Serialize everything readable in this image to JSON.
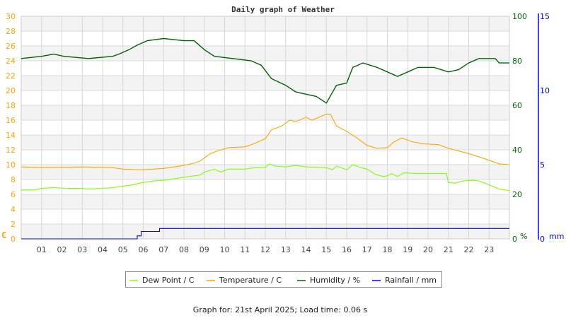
{
  "chart_data": {
    "type": "line",
    "title": "Daily graph of Weather",
    "footer": "Graph for: 21st April 2025; Load time: 0.06 s",
    "x_ticks": [
      "01",
      "02",
      "03",
      "04",
      "05",
      "06",
      "07",
      "08",
      "09",
      "10",
      "11",
      "12",
      "13",
      "14",
      "15",
      "16",
      "17",
      "18",
      "19",
      "20",
      "21",
      "22",
      "23"
    ],
    "xlim": [
      0,
      24
    ],
    "y_left": {
      "unit": "C",
      "lim": [
        0,
        30
      ],
      "ticks": [
        "0",
        "2",
        "4",
        "6",
        "8",
        "10",
        "12",
        "14",
        "16",
        "18",
        "20",
        "22",
        "24",
        "26",
        "28",
        "30"
      ],
      "color": "#ffa500"
    },
    "y_right1": {
      "unit": "%",
      "lim": [
        0,
        100
      ],
      "ticks": [
        "0",
        "20",
        "40",
        "60",
        "80",
        "100"
      ],
      "color": "#006400"
    },
    "y_right2": {
      "unit": "mm",
      "lim": [
        0,
        15
      ],
      "ticks": [
        "0",
        "5",
        "10",
        "15"
      ],
      "color": "#0000ff"
    },
    "grid": true,
    "legend_position": "bottom",
    "series": [
      {
        "name": "Dew Point / C",
        "axis": "left",
        "color": "#7fff00",
        "x": [
          0,
          0.7,
          1,
          1.6,
          2.2,
          3,
          3.3,
          4.5,
          5,
          5.5,
          6,
          6.5,
          7,
          7.5,
          8,
          8.8,
          9,
          9.5,
          9.8,
          10.2,
          11,
          11.5,
          12,
          12.2,
          12.5,
          13,
          13.5,
          14,
          15,
          15.3,
          15.5,
          16,
          16.3,
          16.7,
          17,
          17.4,
          17.8,
          18,
          18.2,
          18.5,
          18.8,
          19.5,
          20.5,
          20.9,
          21,
          21.3,
          21.7,
          22.2,
          22.5,
          23,
          23.5,
          24
        ],
        "y": [
          6.6,
          6.6,
          6.8,
          6.9,
          6.8,
          6.8,
          6.7,
          6.9,
          7.1,
          7.3,
          7.6,
          7.8,
          7.9,
          8.1,
          8.3,
          8.6,
          9.0,
          9.4,
          9.0,
          9.4,
          9.4,
          9.6,
          9.6,
          10.1,
          9.8,
          9.7,
          9.9,
          9.7,
          9.6,
          9.3,
          9.8,
          9.3,
          10.0,
          9.6,
          9.4,
          8.7,
          8.4,
          8.5,
          8.8,
          8.4,
          8.9,
          8.8,
          8.8,
          8.8,
          7.6,
          7.5,
          7.8,
          7.9,
          7.8,
          7.3,
          6.7,
          6.5
        ]
      },
      {
        "name": "Temperature / C",
        "axis": "left",
        "color": "#ffa500",
        "x": [
          0,
          1,
          3,
          4.5,
          5,
          5.8,
          6.5,
          7,
          7.8,
          8.5,
          8.8,
          9.3,
          9.7,
          10.2,
          11,
          11.5,
          12,
          12.3,
          12.8,
          13.2,
          13.5,
          14,
          14.3,
          15,
          15.2,
          15.5,
          16,
          16.5,
          17,
          17.5,
          18,
          18.3,
          18.7,
          19.2,
          19.8,
          20.5,
          21,
          22,
          23,
          23.5,
          24
        ],
        "y": [
          9.7,
          9.6,
          9.7,
          9.6,
          9.4,
          9.3,
          9.4,
          9.5,
          9.8,
          10.2,
          10.5,
          11.5,
          11.9,
          12.3,
          12.4,
          12.9,
          13.5,
          14.7,
          15.2,
          16.0,
          15.8,
          16.4,
          16.0,
          16.8,
          16.8,
          15.2,
          14.5,
          13.6,
          12.6,
          12.2,
          12.3,
          13.0,
          13.6,
          13.1,
          12.8,
          12.7,
          12.2,
          11.5,
          10.6,
          10.1,
          10.0
        ]
      },
      {
        "name": "Humidity / %",
        "axis": "right1",
        "color": "#006400",
        "x": [
          0,
          1,
          1.6,
          2.1,
          3.3,
          4.5,
          4.8,
          5.3,
          5.7,
          6.2,
          7,
          8,
          8.5,
          9,
          9.5,
          10.4,
          11.3,
          11.8,
          12.3,
          13,
          13.5,
          14,
          14.5,
          15,
          15.5,
          16,
          16.3,
          16.8,
          17.5,
          18,
          18.5,
          19,
          19.5,
          20.3,
          21,
          21.5,
          22,
          22.5,
          23.3,
          23.5,
          24
        ],
        "y": [
          81,
          82,
          83,
          82,
          81,
          82,
          83,
          85,
          87,
          89,
          90,
          89,
          89,
          85,
          82,
          81,
          80,
          78,
          72,
          69,
          66,
          65,
          64,
          61,
          69,
          70,
          77,
          79,
          77,
          75,
          73,
          75,
          77,
          77,
          75,
          76,
          79,
          81,
          81,
          79,
          79
        ]
      },
      {
        "name": "Rainfall / mm",
        "axis": "right2",
        "color": "#0000ff",
        "x": [
          0,
          5.7,
          5.7,
          5.9,
          5.9,
          6.8,
          6.8,
          24
        ],
        "y": [
          0,
          0,
          0.2,
          0.2,
          0.5,
          0.5,
          0.7,
          0.7
        ]
      }
    ]
  }
}
